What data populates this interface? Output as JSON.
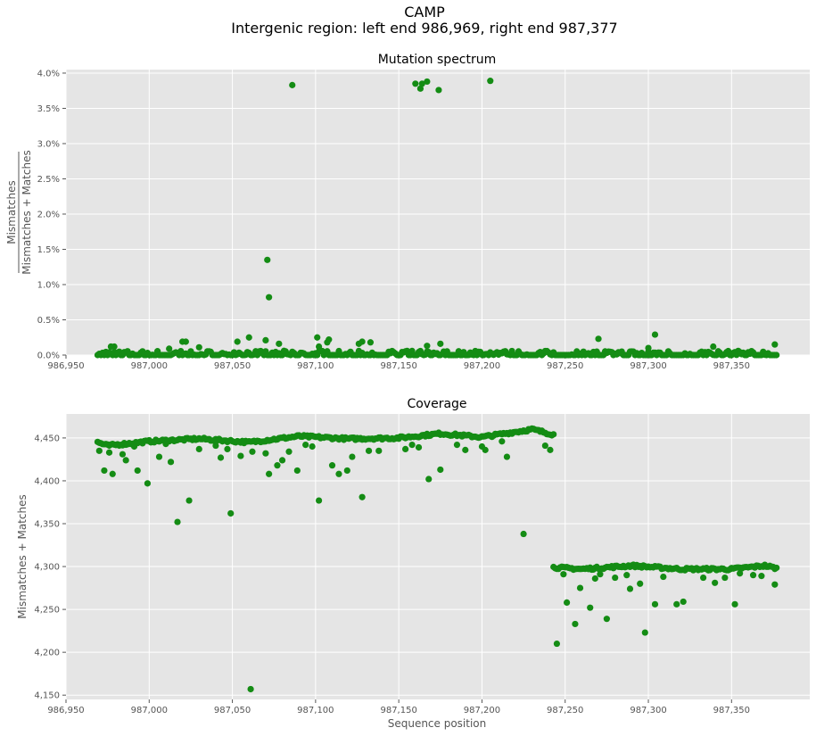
{
  "figure": {
    "title": "CAMP",
    "subtitle": "Intergenic region: left end 986,969, right end 987,377"
  },
  "chart_data": [
    {
      "type": "scatter",
      "title": "Mutation spectrum",
      "ylabel_numerator": "Mismatches",
      "ylabel_denominator": "Mismatches + Matches",
      "xlim": [
        986950,
        987397
      ],
      "ylim": [
        0,
        4.05
      ],
      "x_ticks": [
        986950,
        987000,
        987050,
        987100,
        987150,
        987200,
        987250,
        987300,
        987350
      ],
      "x_tick_labels": [
        "986,950",
        "987,000",
        "987,050",
        "987,100",
        "987,150",
        "987,200",
        "987,250",
        "987,300",
        "987,350"
      ],
      "y_ticks": [
        0,
        0.5,
        1.0,
        1.5,
        2.0,
        2.5,
        3.0,
        3.5,
        4.0
      ],
      "y_tick_labels": [
        "0.0%",
        "0.5%",
        "1.0%",
        "1.5%",
        "2.0%",
        "2.5%",
        "3.0%",
        "3.5%",
        "4.0%"
      ],
      "grid": true,
      "marker_color": "#148c14",
      "points": [
        {
          "x": 987086,
          "y": 3.83
        },
        {
          "x": 987160,
          "y": 3.85
        },
        {
          "x": 987163,
          "y": 3.78
        },
        {
          "x": 987164,
          "y": 3.85
        },
        {
          "x": 987167,
          "y": 3.88
        },
        {
          "x": 987174,
          "y": 3.76
        },
        {
          "x": 987205,
          "y": 3.89
        },
        {
          "x": 987071,
          "y": 1.35
        },
        {
          "x": 987072,
          "y": 0.82
        },
        {
          "x": 987060,
          "y": 0.25
        },
        {
          "x": 987070,
          "y": 0.21
        },
        {
          "x": 987053,
          "y": 0.19
        },
        {
          "x": 987078,
          "y": 0.16
        },
        {
          "x": 987101,
          "y": 0.25
        },
        {
          "x": 987108,
          "y": 0.22
        },
        {
          "x": 987107,
          "y": 0.18
        },
        {
          "x": 987102,
          "y": 0.12
        },
        {
          "x": 987126,
          "y": 0.16
        },
        {
          "x": 987128,
          "y": 0.19
        },
        {
          "x": 987133,
          "y": 0.18
        },
        {
          "x": 987175,
          "y": 0.16
        },
        {
          "x": 987167,
          "y": 0.13
        },
        {
          "x": 987270,
          "y": 0.23
        },
        {
          "x": 987304,
          "y": 0.29
        },
        {
          "x": 987376,
          "y": 0.15
        },
        {
          "x": 987339,
          "y": 0.12
        },
        {
          "x": 987300,
          "y": 0.1
        },
        {
          "x": 987020,
          "y": 0.19
        },
        {
          "x": 987022,
          "y": 0.19
        },
        {
          "x": 986977,
          "y": 0.12
        },
        {
          "x": 986979,
          "y": 0.12
        },
        {
          "x": 987030,
          "y": 0.11
        },
        {
          "x": 987012,
          "y": 0.09
        }
      ],
      "baseline": {
        "x_start": 986969,
        "x_end": 987377,
        "y_max": 0.1
      }
    },
    {
      "type": "scatter",
      "title": "Coverage",
      "xlabel": "Sequence position",
      "ylabel": "Mismatches + Matches",
      "xlim": [
        986950,
        987397
      ],
      "ylim": [
        4145,
        4478
      ],
      "x_ticks": [
        986950,
        987000,
        987050,
        987100,
        987150,
        987200,
        987250,
        987300,
        987350
      ],
      "x_tick_labels": [
        "986,950",
        "987,000",
        "987,050",
        "987,100",
        "987,150",
        "987,200",
        "987,250",
        "987,300",
        "987,350"
      ],
      "y_ticks": [
        4150,
        4200,
        4250,
        4300,
        4350,
        4400,
        4450
      ],
      "y_tick_labels": [
        "4,150",
        "4,200",
        "4,250",
        "4,300",
        "4,350",
        "4,400",
        "4,450"
      ],
      "grid": true,
      "marker_color": "#148c14",
      "points": [
        {
          "x": 986970,
          "y": 4435
        },
        {
          "x": 986973,
          "y": 4412
        },
        {
          "x": 986976,
          "y": 4433
        },
        {
          "x": 986978,
          "y": 4408
        },
        {
          "x": 986984,
          "y": 4431
        },
        {
          "x": 986986,
          "y": 4424
        },
        {
          "x": 986991,
          "y": 4440
        },
        {
          "x": 986993,
          "y": 4412
        },
        {
          "x": 986999,
          "y": 4397
        },
        {
          "x": 987006,
          "y": 4428
        },
        {
          "x": 987010,
          "y": 4443
        },
        {
          "x": 987013,
          "y": 4422
        },
        {
          "x": 987017,
          "y": 4352
        },
        {
          "x": 987024,
          "y": 4377
        },
        {
          "x": 987030,
          "y": 4437
        },
        {
          "x": 987040,
          "y": 4441
        },
        {
          "x": 987043,
          "y": 4427
        },
        {
          "x": 987047,
          "y": 4437
        },
        {
          "x": 987049,
          "y": 4362
        },
        {
          "x": 987055,
          "y": 4429
        },
        {
          "x": 987061,
          "y": 4157
        },
        {
          "x": 987062,
          "y": 4434
        },
        {
          "x": 987070,
          "y": 4432
        },
        {
          "x": 987072,
          "y": 4408
        },
        {
          "x": 987077,
          "y": 4418
        },
        {
          "x": 987080,
          "y": 4424
        },
        {
          "x": 987084,
          "y": 4434
        },
        {
          "x": 987089,
          "y": 4412
        },
        {
          "x": 987094,
          "y": 4442
        },
        {
          "x": 987098,
          "y": 4440
        },
        {
          "x": 987102,
          "y": 4377
        },
        {
          "x": 987110,
          "y": 4418
        },
        {
          "x": 987114,
          "y": 4408
        },
        {
          "x": 987119,
          "y": 4412
        },
        {
          "x": 987122,
          "y": 4428
        },
        {
          "x": 987128,
          "y": 4381
        },
        {
          "x": 987132,
          "y": 4435
        },
        {
          "x": 987138,
          "y": 4435
        },
        {
          "x": 987154,
          "y": 4437
        },
        {
          "x": 987158,
          "y": 4442
        },
        {
          "x": 987162,
          "y": 4439
        },
        {
          "x": 987168,
          "y": 4402
        },
        {
          "x": 987175,
          "y": 4413
        },
        {
          "x": 987185,
          "y": 4442
        },
        {
          "x": 987190,
          "y": 4436
        },
        {
          "x": 987200,
          "y": 4440
        },
        {
          "x": 987202,
          "y": 4436
        },
        {
          "x": 987212,
          "y": 4446
        },
        {
          "x": 987215,
          "y": 4428
        },
        {
          "x": 987225,
          "y": 4338
        },
        {
          "x": 987238,
          "y": 4441
        },
        {
          "x": 987241,
          "y": 4436
        },
        {
          "x": 987245,
          "y": 4210
        },
        {
          "x": 987249,
          "y": 4291
        },
        {
          "x": 987251,
          "y": 4258
        },
        {
          "x": 987256,
          "y": 4233
        },
        {
          "x": 987259,
          "y": 4275
        },
        {
          "x": 987265,
          "y": 4252
        },
        {
          "x": 987268,
          "y": 4286
        },
        {
          "x": 987271,
          "y": 4291
        },
        {
          "x": 987275,
          "y": 4239
        },
        {
          "x": 987280,
          "y": 4287
        },
        {
          "x": 987287,
          "y": 4290
        },
        {
          "x": 987289,
          "y": 4274
        },
        {
          "x": 987295,
          "y": 4280
        },
        {
          "x": 987298,
          "y": 4223
        },
        {
          "x": 987304,
          "y": 4256
        },
        {
          "x": 987309,
          "y": 4288
        },
        {
          "x": 987317,
          "y": 4256
        },
        {
          "x": 987321,
          "y": 4259
        },
        {
          "x": 987333,
          "y": 4287
        },
        {
          "x": 987340,
          "y": 4281
        },
        {
          "x": 987346,
          "y": 4287
        },
        {
          "x": 987352,
          "y": 4256
        },
        {
          "x": 987355,
          "y": 4292
        },
        {
          "x": 987363,
          "y": 4290
        },
        {
          "x": 987368,
          "y": 4289
        },
        {
          "x": 987376,
          "y": 4279
        }
      ],
      "series_bands": [
        {
          "x_start": 986969,
          "x_end": 987243,
          "y_values_at": [
            [
              986969,
              4445
            ],
            [
              986975,
              4441
            ],
            [
              987000,
              4446
            ],
            [
              987030,
              4449
            ],
            [
              987060,
              4445
            ],
            [
              987090,
              4452
            ],
            [
              987120,
              4449
            ],
            [
              987150,
              4450
            ],
            [
              987175,
              4455
            ],
            [
              987200,
              4451
            ],
            [
              987230,
              4460
            ],
            [
              987243,
              4454
            ]
          ]
        },
        {
          "x_start": 987243,
          "x_end": 987377,
          "y_values_at": [
            [
              987243,
              4299
            ],
            [
              987260,
              4297
            ],
            [
              987290,
              4301
            ],
            [
              987320,
              4297
            ],
            [
              987350,
              4297
            ],
            [
              987370,
              4301
            ],
            [
              987377,
              4298
            ]
          ]
        }
      ]
    }
  ]
}
